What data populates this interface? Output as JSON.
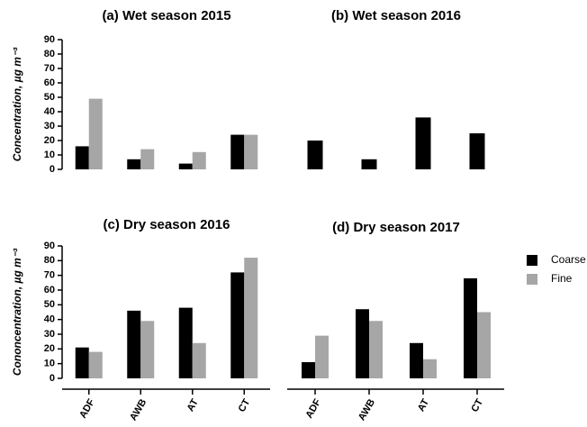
{
  "chart_data": [
    {
      "type": "bar",
      "title": "(a) Wet season 2015",
      "y_label": "Concentration, µg m⁻³",
      "categories": [
        null,
        null,
        null,
        null
      ],
      "series": [
        {
          "name": "Coarse",
          "color": "#000000",
          "values": [
            16,
            7,
            4,
            24
          ]
        },
        {
          "name": "Fine",
          "color": "#a6a6a6",
          "values": [
            49,
            14,
            12,
            24
          ]
        }
      ],
      "ylim": [
        0,
        90
      ],
      "yticks": [
        0,
        10,
        20,
        30,
        40,
        50,
        60,
        70,
        80,
        90
      ]
    },
    {
      "type": "bar",
      "title": "(b) Wet season 2016",
      "categories": [
        null,
        null,
        null,
        null
      ],
      "series": [
        {
          "name": "Coarse",
          "color": "#000000",
          "values": [
            20,
            7,
            36,
            25
          ]
        }
      ],
      "ylim": [
        0,
        90
      ]
    },
    {
      "type": "bar",
      "title": "(c) Dry season 2016",
      "y_label": "Cononcentration, µg m⁻³",
      "categories": [
        "ADF",
        "AWB",
        "AT",
        "CT"
      ],
      "series": [
        {
          "name": "Coarse",
          "color": "#000000",
          "values": [
            21,
            46,
            48,
            72
          ]
        },
        {
          "name": "Fine",
          "color": "#a6a6a6",
          "values": [
            18,
            39,
            24,
            82
          ]
        }
      ],
      "ylim": [
        0,
        90
      ],
      "yticks": [
        0,
        10,
        20,
        30,
        40,
        50,
        60,
        70,
        80,
        90
      ]
    },
    {
      "type": "bar",
      "title": "(d) Dry season 2017",
      "categories": [
        "ADF",
        "AWB",
        "AT",
        "CT"
      ],
      "series": [
        {
          "name": "Coarse",
          "color": "#000000",
          "values": [
            11,
            47,
            24,
            68
          ]
        },
        {
          "name": "Fine",
          "color": "#a6a6a6",
          "values": [
            29,
            39,
            13,
            45
          ]
        }
      ],
      "ylim": [
        0,
        90
      ]
    }
  ]
}
